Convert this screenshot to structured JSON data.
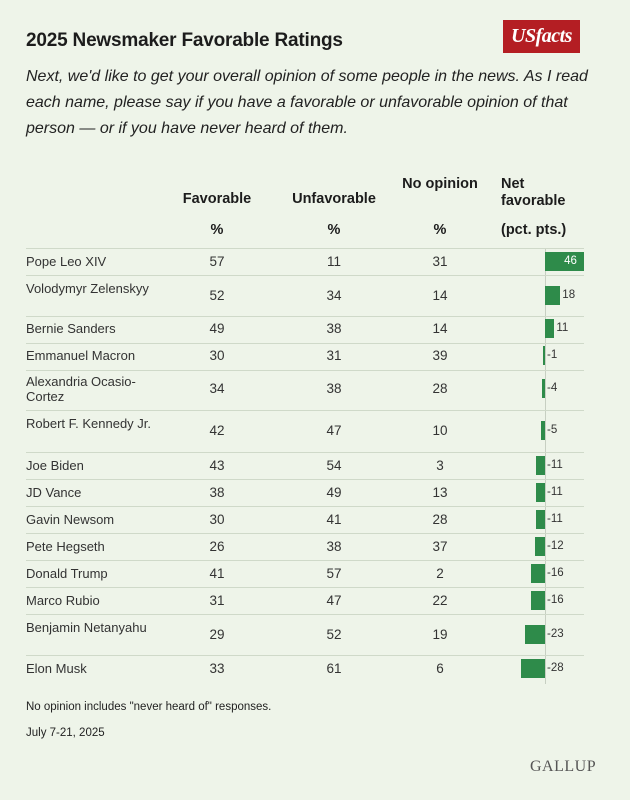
{
  "header": {
    "title": "2025 Newsmaker Favorable Ratings",
    "logo_text": "USfacts",
    "subtitle": "Next, we'd like to get your overall opinion of some people in the news. As I read each name, please say if you have a favorable or unfavorable opinion of that person — or if you have never heard of them."
  },
  "columns": {
    "favorable": "Favorable",
    "unfavorable": "Unfavorable",
    "no_opinion": "No opinion",
    "net": "Net favorable",
    "unit_pct": "%",
    "unit_net": "(pct. pts.)"
  },
  "chart_data": {
    "type": "table",
    "rows": [
      {
        "name": "Pope Leo XIV",
        "favorable": 57,
        "unfavorable": 11,
        "no_opinion": 31,
        "net": 46
      },
      {
        "name": "Volodymyr Zelenskyy",
        "favorable": 52,
        "unfavorable": 34,
        "no_opinion": 14,
        "net": 18
      },
      {
        "name": "Bernie Sanders",
        "favorable": 49,
        "unfavorable": 38,
        "no_opinion": 14,
        "net": 11
      },
      {
        "name": "Emmanuel Macron",
        "favorable": 30,
        "unfavorable": 31,
        "no_opinion": 39,
        "net": -1
      },
      {
        "name": "Alexandria Ocasio-Cortez",
        "favorable": 34,
        "unfavorable": 38,
        "no_opinion": 28,
        "net": -4
      },
      {
        "name": "Robert F. Kennedy Jr.",
        "favorable": 42,
        "unfavorable": 47,
        "no_opinion": 10,
        "net": -5
      },
      {
        "name": "Joe Biden",
        "favorable": 43,
        "unfavorable": 54,
        "no_opinion": 3,
        "net": -11
      },
      {
        "name": "JD Vance",
        "favorable": 38,
        "unfavorable": 49,
        "no_opinion": 13,
        "net": -11
      },
      {
        "name": "Gavin Newsom",
        "favorable": 30,
        "unfavorable": 41,
        "no_opinion": 28,
        "net": -11
      },
      {
        "name": "Pete Hegseth",
        "favorable": 26,
        "unfavorable": 38,
        "no_opinion": 37,
        "net": -12
      },
      {
        "name": "Donald Trump",
        "favorable": 41,
        "unfavorable": 57,
        "no_opinion": 2,
        "net": -16
      },
      {
        "name": "Marco Rubio",
        "favorable": 31,
        "unfavorable": 47,
        "no_opinion": 22,
        "net": -16
      },
      {
        "name": "Benjamin Netanyahu",
        "favorable": 29,
        "unfavorable": 52,
        "no_opinion": 19,
        "net": -23
      },
      {
        "name": "Elon Musk",
        "favorable": 33,
        "unfavorable": 61,
        "no_opinion": 6,
        "net": -28
      }
    ],
    "bar_color": "#2e8b4a"
  },
  "footer": {
    "note": "No opinion includes \"never heard of\" responses.",
    "date": "July 7-21, 2025",
    "source": "GALLUP"
  }
}
